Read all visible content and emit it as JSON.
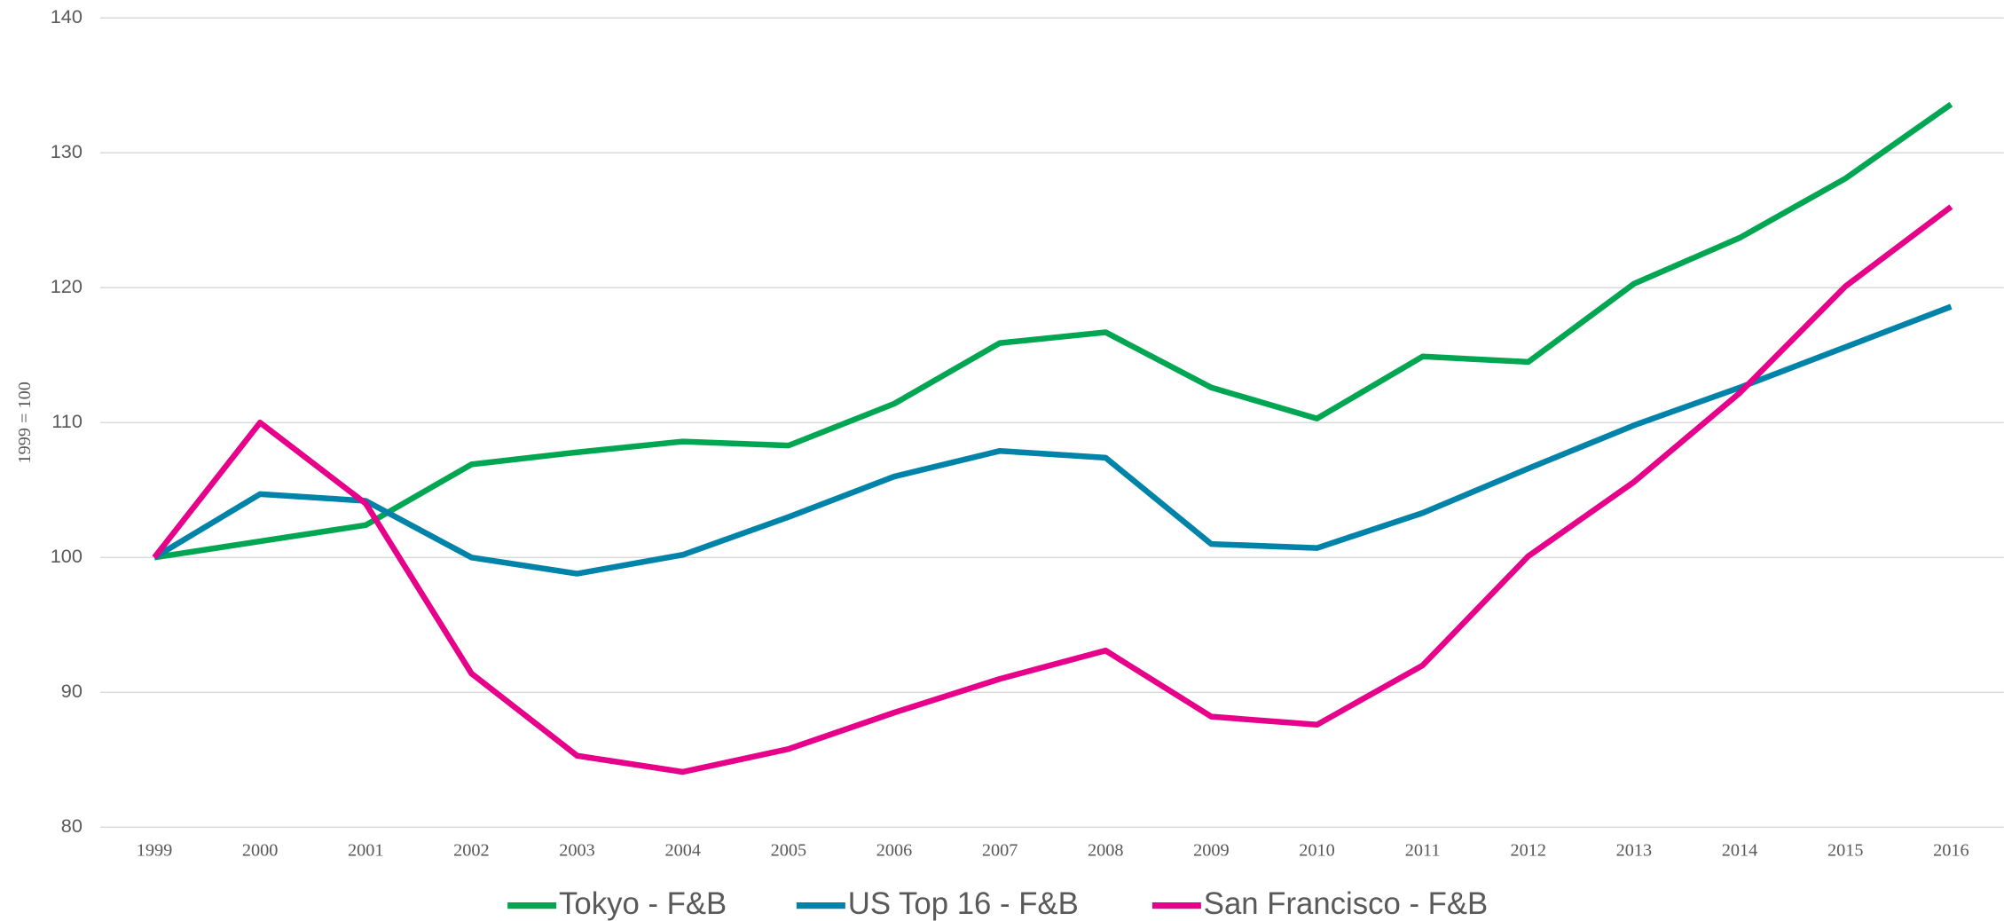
{
  "chart_data": {
    "type": "line",
    "y_label": "1999 = 100",
    "categories": [
      "1999",
      "2000",
      "2001",
      "2002",
      "2003",
      "2004",
      "2005",
      "2006",
      "2007",
      "2008",
      "2009",
      "2010",
      "2011",
      "2012",
      "2013",
      "2014",
      "2015",
      "2016"
    ],
    "series": [
      {
        "name": "Tokyo - F&B",
        "color": "#00a651",
        "values": [
          100,
          101.2,
          102.4,
          106.9,
          107.8,
          108.6,
          108.3,
          111.4,
          115.9,
          116.7,
          112.6,
          110.3,
          114.9,
          114.5,
          120.3,
          123.7,
          128.1,
          133.6
        ]
      },
      {
        "name": "US Top 16 - F&B",
        "color": "#0083a9",
        "values": [
          100,
          104.7,
          104.2,
          100,
          98.8,
          100.2,
          103.0,
          106.0,
          107.9,
          107.4,
          101.0,
          100.7,
          103.3,
          106.6,
          109.8,
          112.6,
          115.6,
          118.6
        ]
      },
      {
        "name": "San Francisco - F&B",
        "color": "#e6008a",
        "values": [
          100,
          110,
          104,
          91.4,
          85.3,
          84.1,
          85.8,
          88.5,
          91.0,
          93.1,
          88.2,
          87.6,
          92.0,
          100.1,
          105.6,
          112.2,
          120.1,
          126.0
        ]
      }
    ],
    "ylim": [
      80,
      140
    ],
    "yticks": [
      80,
      90,
      100,
      110,
      120,
      130,
      140
    ],
    "grid": true,
    "legend": "bottom"
  }
}
